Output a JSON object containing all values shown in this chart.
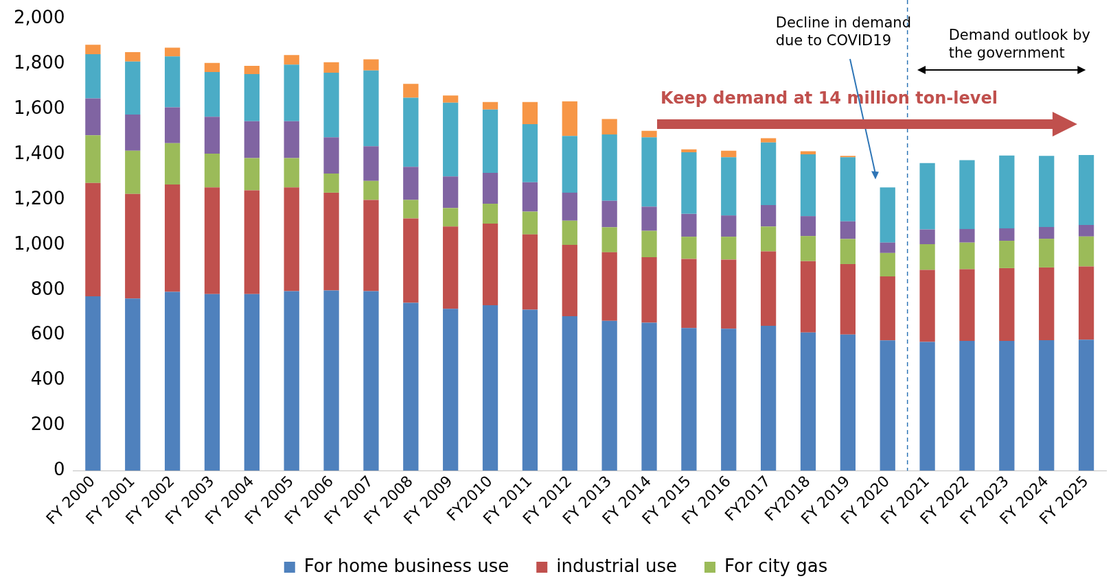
{
  "chart_data": {
    "type": "bar",
    "stacked": true,
    "categories": [
      "FY 2000",
      "FY 2001",
      "FY 2002",
      "FY 2003",
      "FY 2004",
      "FY 2005",
      "FY 2006",
      "FY 2007",
      "FY 2008",
      "FY 2009",
      "FY2010",
      "FY 2011",
      "FY 2012",
      "FY 2013",
      "FY 2014",
      "FY 2015",
      "FY 2016",
      "FY2017",
      "FY2018",
      "FY 2019",
      "FY 2020",
      "FY 2021",
      "FY 2022",
      "FY 2023",
      "FY 2024",
      "FY 2025"
    ],
    "series": [
      {
        "name": "For home business use",
        "color": "#4f81bd",
        "values": [
          772,
          762,
          792,
          782,
          782,
          795,
          798,
          795,
          743,
          717,
          733,
          713,
          684,
          664,
          655,
          632,
          629,
          642,
          612,
          603,
          577,
          570,
          575,
          575,
          578,
          580
        ]
      },
      {
        "name": "industrial use",
        "color": "#c0504d",
        "values": [
          502,
          463,
          475,
          472,
          459,
          459,
          433,
          404,
          374,
          364,
          361,
          333,
          316,
          303,
          290,
          306,
          306,
          329,
          316,
          312,
          283,
          319,
          317,
          322,
          322,
          324
        ]
      },
      {
        "name": "For city gas",
        "color": "#9bbb59",
        "values": [
          211,
          192,
          183,
          150,
          143,
          130,
          85,
          84,
          82,
          82,
          88,
          101,
          107,
          111,
          117,
          98,
          101,
          110,
          111,
          111,
          104,
          114,
          118,
          121,
          127,
          133
        ]
      },
      {
        "color": "#8064a2",
        "values": [
          163,
          160,
          159,
          163,
          163,
          163,
          160,
          153,
          146,
          140,
          137,
          130,
          124,
          117,
          107,
          101,
          94,
          95,
          88,
          78,
          46,
          65,
          60,
          55,
          52,
          51
        ]
      },
      {
        "color": "#4bacc6",
        "values": [
          196,
          234,
          225,
          198,
          209,
          251,
          286,
          336,
          306,
          326,
          280,
          257,
          251,
          294,
          307,
          273,
          258,
          277,
          274,
          284,
          244,
          294,
          305,
          322,
          315,
          310
        ]
      },
      {
        "color": "#f79646",
        "values": [
          42,
          42,
          39,
          40,
          36,
          42,
          46,
          49,
          62,
          32,
          33,
          98,
          153,
          68,
          29,
          13,
          29,
          19,
          13,
          6,
          null,
          null,
          null,
          null,
          null,
          null
        ]
      }
    ],
    "ylim": [
      0,
      2000
    ],
    "yticks": [
      0,
      200,
      400,
      600,
      800,
      {
        "value": 1000,
        "label": "1,000"
      },
      {
        "value": 1200,
        "label": "1,200"
      },
      {
        "value": 1400,
        "label": "1,400"
      },
      {
        "value": 1600,
        "label": "1,600"
      },
      {
        "value": 1800,
        "label": "1,800"
      },
      {
        "value": 2000,
        "label": "2,000"
      }
    ],
    "grid": false,
    "legend": "bottom",
    "ref_lines": [
      {
        "axis": "x",
        "value": "FY 2020",
        "color": "#2e75b6",
        "line_style": "dashed"
      }
    ],
    "annotations": [
      "Decline in demand due to COVID19",
      "Demand outlook by the government",
      "Keep demand at 14 million ton-level"
    ]
  }
}
